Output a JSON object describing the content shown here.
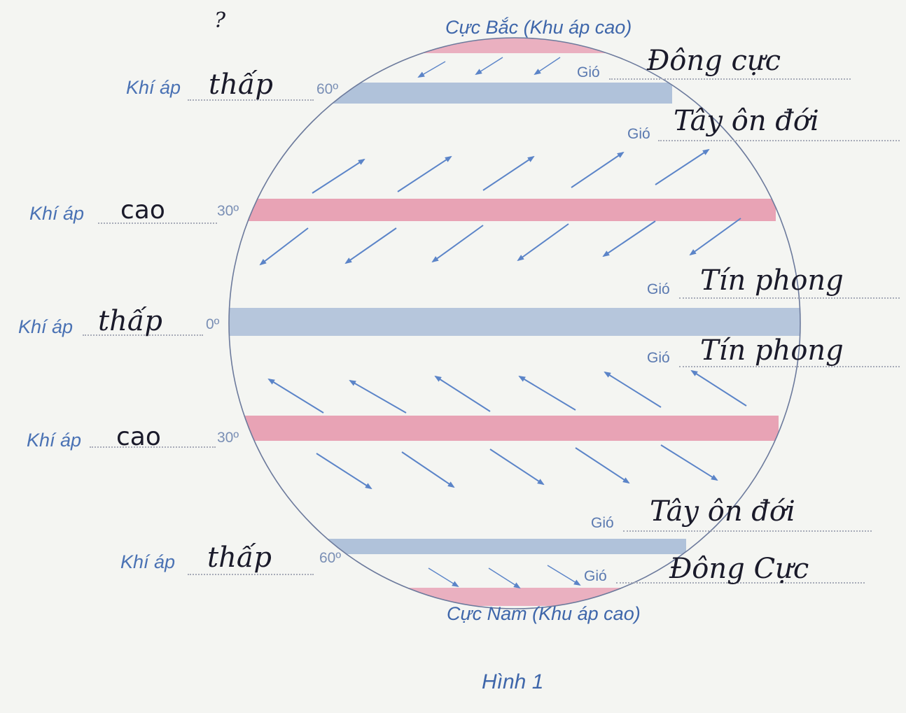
{
  "top_fragment": "?",
  "poles": {
    "north": "Cực Bắc (Khu áp cao)",
    "south": "Cực Nam (Khu áp cao)"
  },
  "caption": "Hình 1",
  "pressure_label": "Khí áp",
  "wind_label": "Gió",
  "latitudes": {
    "n60": "60º",
    "n30": "30º",
    "eq": "0º",
    "s30": "30º",
    "s60": "60º"
  },
  "pressure_answers": {
    "n60": "thấp",
    "n30": "cao",
    "eq": "thấp",
    "s30": "cao",
    "s60": "thấp"
  },
  "wind_answers": {
    "n_polar": "Đông cực",
    "n_westerly": "Tây ôn đới",
    "n_trade": "Tín phong",
    "s_trade": "Tín phong",
    "s_westerly": "Tây ôn đới",
    "s_polar": "Đông Cực"
  },
  "colors": {
    "high_band": "#e8a3b5",
    "low_band": "#b0c2da",
    "arrow": "#5b84c8",
    "outline": "#6c7a9c"
  }
}
